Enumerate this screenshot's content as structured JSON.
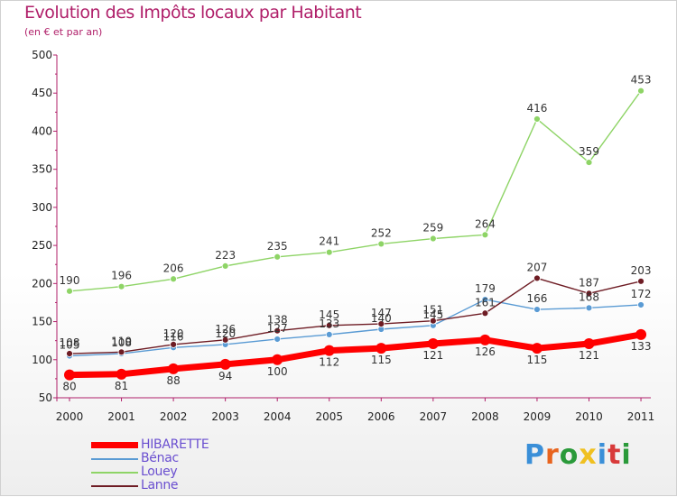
{
  "header": {
    "title": "Evolution des Impôts locaux par Habitant",
    "subtitle": "(en € et par an)"
  },
  "logo": {
    "text": "Proxiti",
    "colors": [
      "#3a8fd8",
      "#e8641e",
      "#2a9a3a",
      "#f0c020",
      "#3a8fd8",
      "#d83a3a",
      "#2a9a3a"
    ]
  },
  "chart_data": {
    "type": "line",
    "title": "Evolution des Impôts locaux par Habitant",
    "subtitle": "(en € et par an)",
    "xlabel": "",
    "ylabel": "",
    "ylim": [
      50,
      500
    ],
    "yticks": [
      50,
      100,
      150,
      200,
      250,
      300,
      350,
      400,
      450,
      500
    ],
    "grid": false,
    "legend_position": "bottom-left",
    "x": [
      "2000",
      "2001",
      "2002",
      "2003",
      "2004",
      "2005",
      "2006",
      "2007",
      "2008",
      "2009",
      "2010",
      "2011"
    ],
    "series": [
      {
        "name": "HIBARETTE",
        "color": "#ff0000",
        "values": [
          80,
          81,
          88,
          94,
          100,
          112,
          115,
          121,
          126,
          115,
          121,
          133
        ]
      },
      {
        "name": "Bénac",
        "color": "#5a9bd4",
        "values": [
          105,
          108,
          116,
          120,
          127,
          133,
          140,
          145,
          179,
          166,
          168,
          172
        ]
      },
      {
        "name": "Louey",
        "color": "#8ed466",
        "values": [
          190,
          196,
          206,
          223,
          235,
          241,
          252,
          259,
          264,
          416,
          359,
          453
        ]
      },
      {
        "name": "Lanne",
        "color": "#6e1c24",
        "values": [
          108,
          110,
          120,
          126,
          138,
          145,
          147,
          151,
          161,
          207,
          187,
          203
        ]
      }
    ]
  }
}
